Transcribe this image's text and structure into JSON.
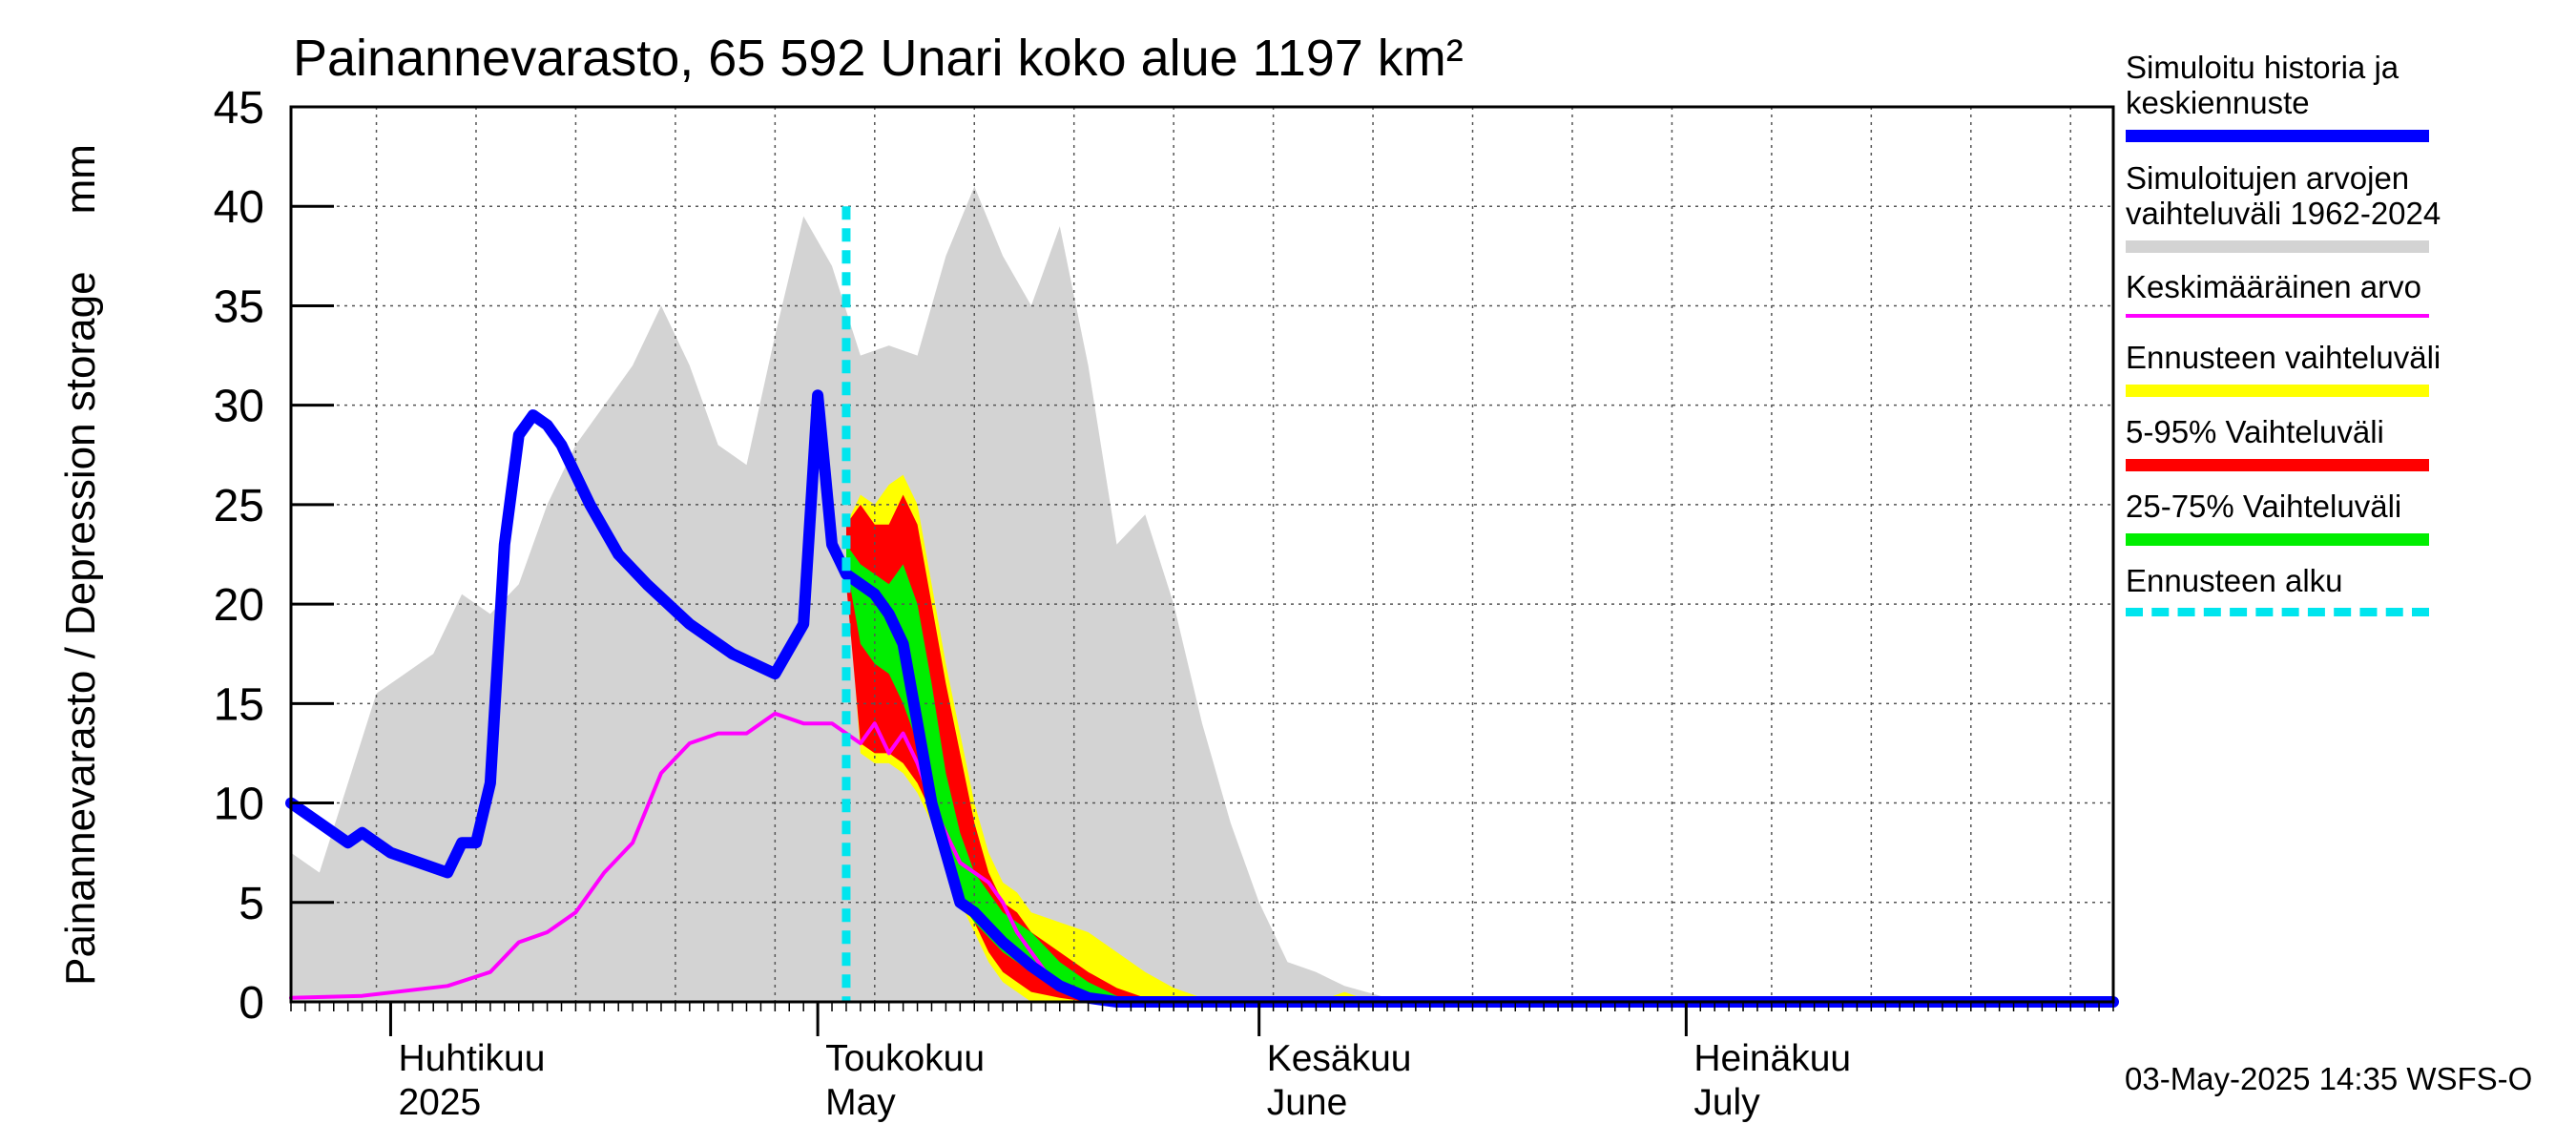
{
  "title": "Painannevarasto, 65 592 Unari koko alue 1197 km²",
  "y_axis_label": {
    "fi": "Painannevarasto / Depression storage",
    "unit": "mm"
  },
  "footer": "03-May-2025 14:35 WSFS-O",
  "legend": [
    {
      "id": "history",
      "label": "Simuloitu historia ja keskiennuste",
      "color": "#0000ff",
      "style": "thick-line"
    },
    {
      "id": "range",
      "label": "Simuloitujen arvojen vaihteluväli 1962-2024",
      "color": "#d3d3d3",
      "style": "band"
    },
    {
      "id": "mean",
      "label": "Keskimääräinen arvo",
      "color": "#ff00ff",
      "style": "thin-line"
    },
    {
      "id": "forecast_range",
      "label": "Ennusteen vaihteluväli",
      "color": "#ffff00",
      "style": "band"
    },
    {
      "id": "p5_95",
      "label": "5-95% Vaihteluväli",
      "color": "#ff0000",
      "style": "band"
    },
    {
      "id": "p25_75",
      "label": "25-75% Vaihteluväli",
      "color": "#00ee00",
      "style": "band"
    },
    {
      "id": "forecast_start",
      "label": "Ennusteen alku",
      "color": "#00e5ee",
      "style": "dashed"
    }
  ],
  "chart_data": {
    "type": "area",
    "x_unit": "date",
    "x_range": [
      "2025-03-25",
      "2025-07-31"
    ],
    "ylim": [
      0,
      45
    ],
    "y_ticks": [
      0,
      5,
      10,
      15,
      20,
      25,
      30,
      35,
      40,
      45
    ],
    "grid": true,
    "legend_placement": "right",
    "month_labels": [
      {
        "date": "2025-04-01",
        "line1": "Huhtikuu",
        "line2": "2025"
      },
      {
        "date": "2025-05-01",
        "line1": "Toukokuu",
        "line2": "May"
      },
      {
        "date": "2025-06-01",
        "line1": "Kesäkuu",
        "line2": "June"
      },
      {
        "date": "2025-07-01",
        "line1": "Heinäkuu",
        "line2": "July"
      }
    ],
    "forecast_start": "2025-05-03",
    "series": [
      {
        "name": "Simulated range 1962-2024",
        "kind": "band",
        "color": "#d3d3d3",
        "x": [
          "2025-03-25",
          "2025-03-27",
          "2025-03-29",
          "2025-03-31",
          "2025-04-02",
          "2025-04-04",
          "2025-04-06",
          "2025-04-08",
          "2025-04-10",
          "2025-04-12",
          "2025-04-14",
          "2025-04-16",
          "2025-04-18",
          "2025-04-20",
          "2025-04-22",
          "2025-04-24",
          "2025-04-26",
          "2025-04-28",
          "2025-04-30",
          "2025-05-02",
          "2025-05-04",
          "2025-05-06",
          "2025-05-08",
          "2025-05-10",
          "2025-05-12",
          "2025-05-14",
          "2025-05-16",
          "2025-05-18",
          "2025-05-20",
          "2025-05-22",
          "2025-05-24",
          "2025-05-26",
          "2025-05-28",
          "2025-05-30",
          "2025-06-01",
          "2025-06-03",
          "2025-06-05",
          "2025-06-07",
          "2025-06-10",
          "2025-06-15",
          "2025-07-31"
        ],
        "lower": [
          0,
          0,
          0,
          0,
          0,
          0,
          0,
          0,
          0,
          0,
          0,
          0,
          0,
          0,
          0,
          0,
          0,
          0,
          0,
          0,
          0,
          0,
          0,
          0,
          0,
          0,
          0,
          0,
          0,
          0,
          0,
          0,
          0,
          0,
          0,
          0,
          0,
          0,
          0,
          0,
          0
        ],
        "upper": [
          7.5,
          6.5,
          11,
          15.5,
          16.5,
          17.5,
          20.5,
          19.5,
          21,
          25,
          28,
          30,
          32,
          35,
          32,
          28,
          27,
          33.5,
          39.5,
          37,
          32.5,
          33,
          32.5,
          37.5,
          41,
          37.5,
          35,
          39,
          32,
          23,
          24.5,
          20,
          14,
          9,
          5,
          2,
          1.5,
          0.8,
          0.2,
          0,
          0
        ]
      },
      {
        "name": "Forecast range",
        "kind": "band",
        "color": "#ffff00",
        "x": [
          "2025-05-03",
          "2025-05-04",
          "2025-05-05",
          "2025-05-06",
          "2025-05-07",
          "2025-05-08",
          "2025-05-09",
          "2025-05-10",
          "2025-05-11",
          "2025-05-12",
          "2025-05-13",
          "2025-05-14",
          "2025-05-15",
          "2025-05-16",
          "2025-05-18",
          "2025-05-20",
          "2025-05-22",
          "2025-05-24",
          "2025-05-26",
          "2025-05-28",
          "2025-05-30",
          "2025-06-01",
          "2025-06-05",
          "2025-06-07",
          "2025-06-09",
          "2025-07-31"
        ],
        "lower": [
          22,
          12.5,
          12,
          12,
          11.5,
          10.5,
          9,
          7,
          5,
          3.5,
          2,
          1,
          0.5,
          0,
          0,
          0,
          0,
          0,
          0,
          0,
          0,
          0,
          0,
          0,
          0,
          0
        ],
        "upper": [
          24,
          25.5,
          25,
          26,
          26.5,
          25,
          21,
          17,
          13.5,
          10,
          7.5,
          6,
          5.5,
          4.5,
          4,
          3.5,
          2.5,
          1.5,
          0.7,
          0.2,
          0,
          0,
          0,
          0.5,
          0,
          0
        ]
      },
      {
        "name": "5-95% range",
        "kind": "band",
        "color": "#ff0000",
        "x": [
          "2025-05-03",
          "2025-05-04",
          "2025-05-05",
          "2025-05-06",
          "2025-05-07",
          "2025-05-08",
          "2025-05-09",
          "2025-05-10",
          "2025-05-11",
          "2025-05-12",
          "2025-05-13",
          "2025-05-14",
          "2025-05-15",
          "2025-05-16",
          "2025-05-18",
          "2025-05-20",
          "2025-05-22",
          "2025-05-24",
          "2025-05-26",
          "2025-07-31"
        ],
        "lower": [
          21,
          13,
          12.5,
          12.5,
          12,
          11,
          9.5,
          7.5,
          5.5,
          4,
          2.5,
          1.5,
          1,
          0.5,
          0.2,
          0,
          0,
          0,
          0,
          0
        ],
        "upper": [
          24,
          25,
          24,
          24,
          25.5,
          24,
          20,
          16,
          12.5,
          9,
          6.5,
          5,
          4.5,
          3.5,
          2.5,
          1.5,
          0.7,
          0.2,
          0,
          0
        ]
      },
      {
        "name": "25-75% range",
        "kind": "band",
        "color": "#00ee00",
        "x": [
          "2025-05-03",
          "2025-05-04",
          "2025-05-05",
          "2025-05-06",
          "2025-05-07",
          "2025-05-08",
          "2025-05-09",
          "2025-05-10",
          "2025-05-11",
          "2025-05-12",
          "2025-05-14",
          "2025-05-16",
          "2025-05-18",
          "2025-05-20",
          "2025-05-22",
          "2025-05-24",
          "2025-07-31"
        ],
        "lower": [
          22,
          18,
          17,
          16.5,
          15,
          13,
          10,
          7,
          5,
          4,
          2.5,
          1.5,
          0.5,
          0.2,
          0,
          0,
          0
        ],
        "upper": [
          23,
          22,
          21.5,
          21,
          22,
          20,
          16,
          11.5,
          8.5,
          6.5,
          4.5,
          3.5,
          2,
          1,
          0.3,
          0,
          0
        ]
      },
      {
        "name": "Mean value",
        "kind": "line",
        "color": "#ff00ff",
        "x": [
          "2025-03-25",
          "2025-03-30",
          "2025-04-05",
          "2025-04-08",
          "2025-04-10",
          "2025-04-12",
          "2025-04-14",
          "2025-04-16",
          "2025-04-18",
          "2025-04-20",
          "2025-04-22",
          "2025-04-24",
          "2025-04-26",
          "2025-04-28",
          "2025-04-30",
          "2025-05-02",
          "2025-05-04",
          "2025-05-05",
          "2025-05-06",
          "2025-05-07",
          "2025-05-08",
          "2025-05-09",
          "2025-05-10",
          "2025-05-11",
          "2025-05-12",
          "2025-05-13",
          "2025-05-14",
          "2025-05-15",
          "2025-05-16",
          "2025-05-17",
          "2025-05-18",
          "2025-05-20",
          "2025-05-22",
          "2025-05-24",
          "2025-07-31"
        ],
        "y": [
          0.2,
          0.3,
          0.8,
          1.5,
          3,
          3.5,
          4.5,
          6.5,
          8,
          11.5,
          13,
          13.5,
          13.5,
          14.5,
          14,
          14,
          13,
          14,
          12.5,
          13.5,
          12,
          10,
          8.5,
          7,
          6.5,
          6,
          5,
          3.5,
          2.5,
          1.5,
          1,
          0.3,
          0.1,
          0,
          0
        ]
      },
      {
        "name": "Simulated history and median forecast",
        "kind": "line",
        "color": "#0000ff",
        "x": [
          "2025-03-25",
          "2025-03-29",
          "2025-03-30",
          "2025-04-01",
          "2025-04-05",
          "2025-04-06",
          "2025-04-07",
          "2025-04-08",
          "2025-04-09",
          "2025-04-10",
          "2025-04-11",
          "2025-04-12",
          "2025-04-13",
          "2025-04-15",
          "2025-04-17",
          "2025-04-19",
          "2025-04-22",
          "2025-04-25",
          "2025-04-28",
          "2025-04-30",
          "2025-05-01",
          "2025-05-02",
          "2025-05-03",
          "2025-05-05",
          "2025-05-06",
          "2025-05-07",
          "2025-05-08",
          "2025-05-09",
          "2025-05-10",
          "2025-05-11",
          "2025-05-12",
          "2025-05-14",
          "2025-05-16",
          "2025-05-18",
          "2025-05-20",
          "2025-05-22",
          "2025-05-24",
          "2025-07-31"
        ],
        "y": [
          10,
          8,
          8.5,
          7.5,
          6.5,
          8,
          8,
          11,
          23,
          28.5,
          29.5,
          29,
          28,
          25,
          22.5,
          21,
          19,
          17.5,
          16.5,
          19,
          30.5,
          23,
          21.5,
          20.5,
          19.5,
          18,
          14,
          10,
          7.5,
          5,
          4.5,
          3,
          1.8,
          0.8,
          0.2,
          0,
          0,
          0
        ]
      }
    ]
  }
}
